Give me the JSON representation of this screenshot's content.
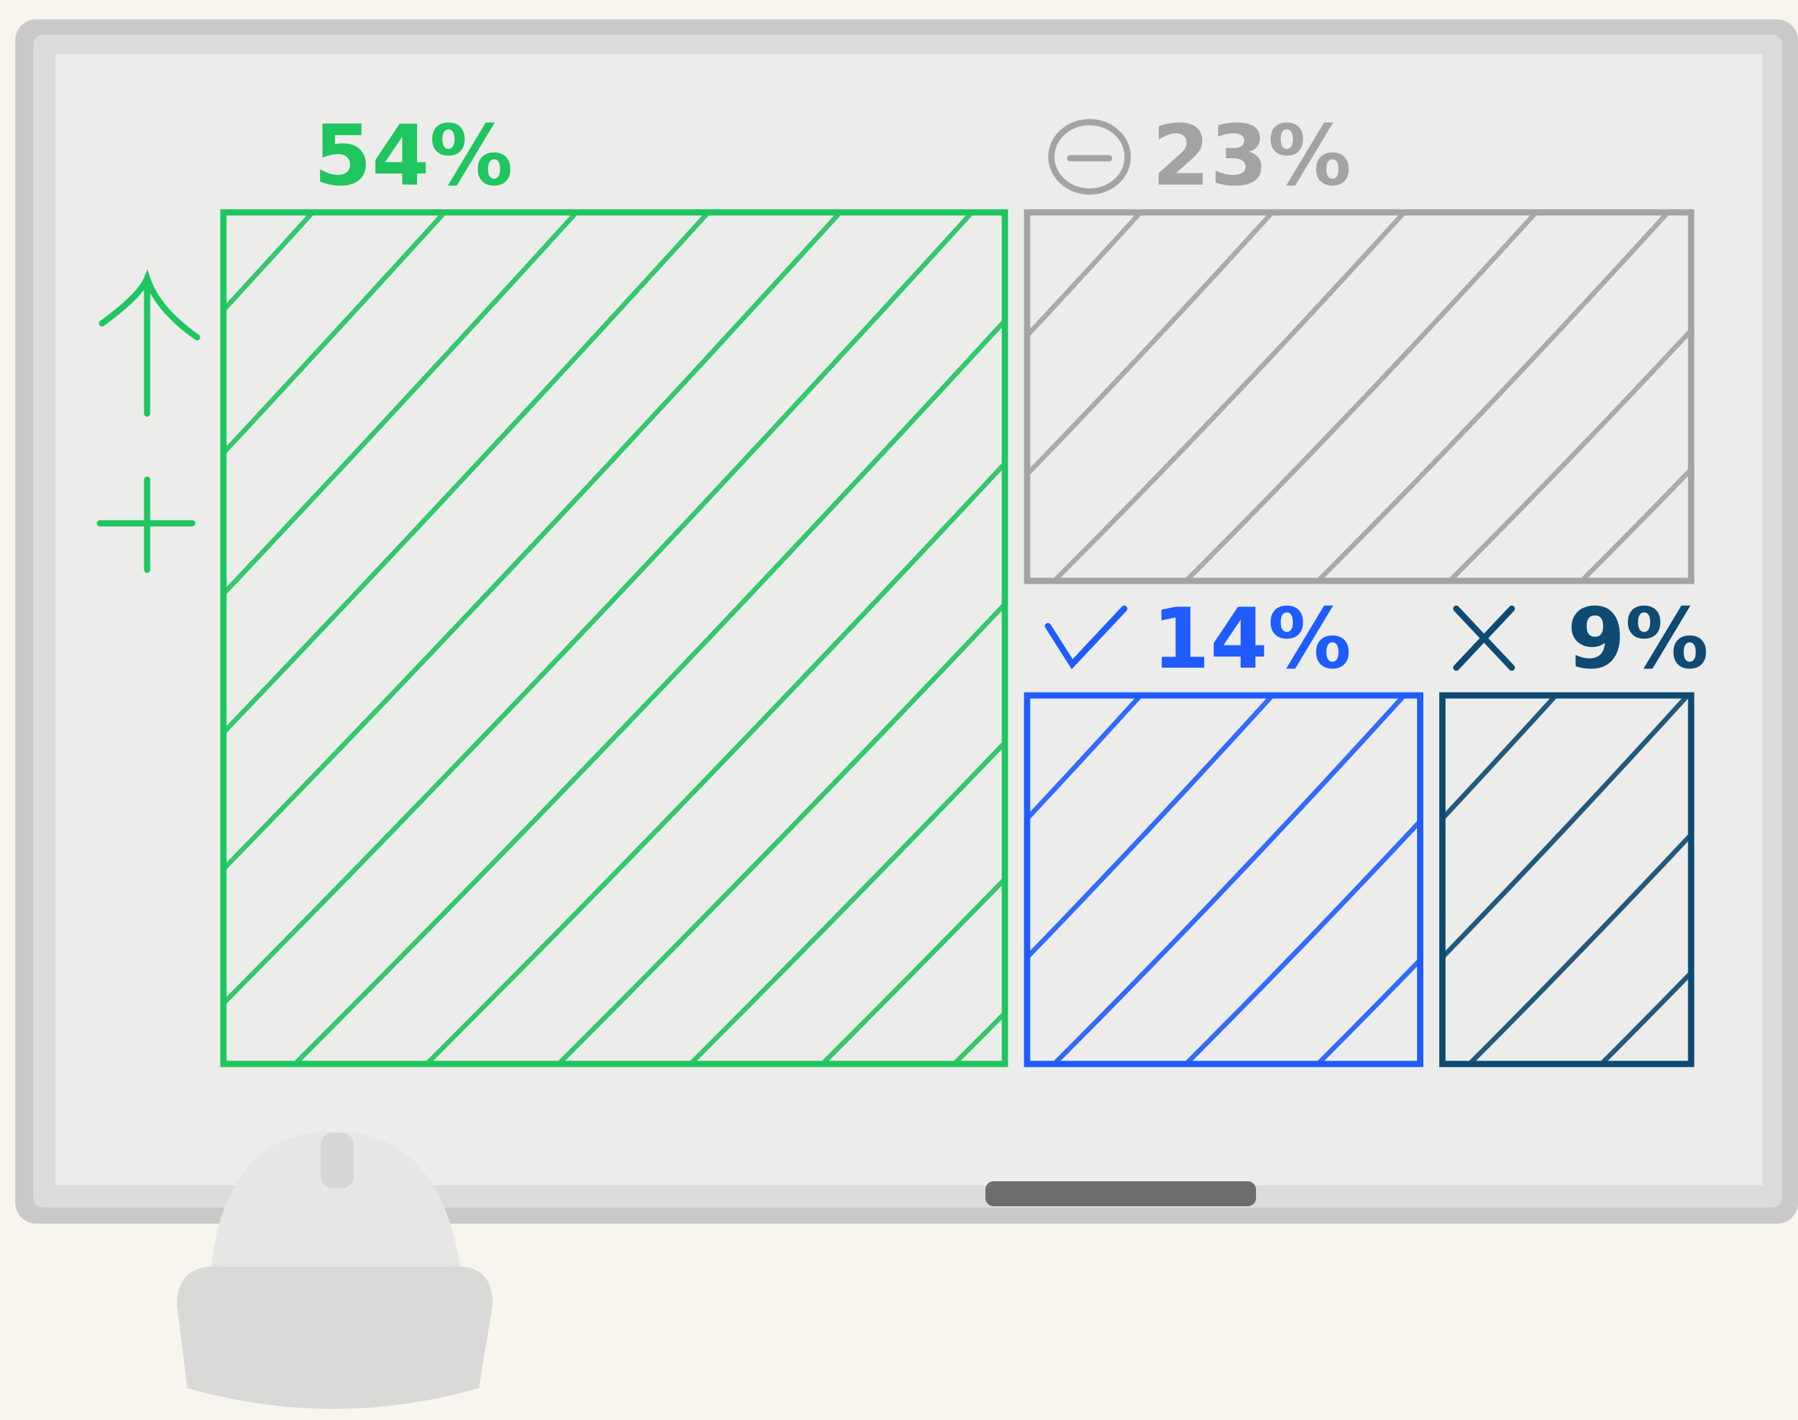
{
  "chart_data": {
    "type": "treemap",
    "values": [
      54,
      23,
      14,
      9
    ],
    "value_labels": [
      "54%",
      "23%",
      "14%",
      "9%"
    ],
    "colors": [
      "#1fc55e",
      "#a3a3a3",
      "#1f5cff",
      "#0e4a72"
    ]
  }
}
